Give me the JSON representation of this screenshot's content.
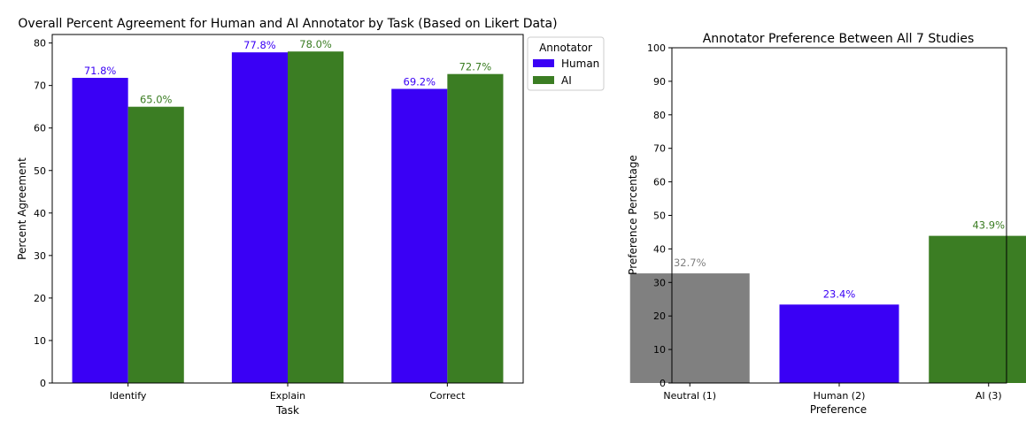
{
  "chart_data": [
    {
      "type": "bar",
      "title": "Overall Percent Agreement for Human and AI Annotator by Task (Based on Likert Data)",
      "xlabel": "Task",
      "ylabel": "Percent Agreement",
      "categories": [
        "Identify",
        "Explain",
        "Correct"
      ],
      "series": [
        {
          "name": "Human",
          "color": "#3a00f5",
          "values": [
            71.8,
            77.8,
            69.2
          ],
          "labels": [
            "71.8%",
            "77.8%",
            "69.2%"
          ]
        },
        {
          "name": "AI",
          "color": "#3b7d23",
          "values": [
            65.0,
            78.0,
            72.7
          ],
          "labels": [
            "65.0%",
            "78.0%",
            "72.7%"
          ]
        }
      ],
      "ylim": [
        0,
        82
      ],
      "yticks": [
        "0",
        "10",
        "20",
        "30",
        "40",
        "50",
        "60",
        "70",
        "80"
      ],
      "legend": {
        "title": "Annotator",
        "placement": "outside-top-right"
      },
      "grid": false
    },
    {
      "type": "bar",
      "title": "Annotator Preference Between All 7 Studies",
      "xlabel": "Preference",
      "ylabel": "Preference Percentage",
      "categories": [
        "Neutral (1)",
        "Human (2)",
        "AI (3)"
      ],
      "values": [
        32.7,
        23.4,
        43.9
      ],
      "labels": [
        "32.7%",
        "23.4%",
        "43.9%"
      ],
      "colors": [
        "#808080",
        "#3a00f5",
        "#3b7d23"
      ],
      "ylim": [
        0,
        100
      ],
      "yticks": [
        "0",
        "10",
        "20",
        "30",
        "40",
        "50",
        "60",
        "70",
        "80",
        "90",
        "100"
      ],
      "grid": false
    }
  ]
}
